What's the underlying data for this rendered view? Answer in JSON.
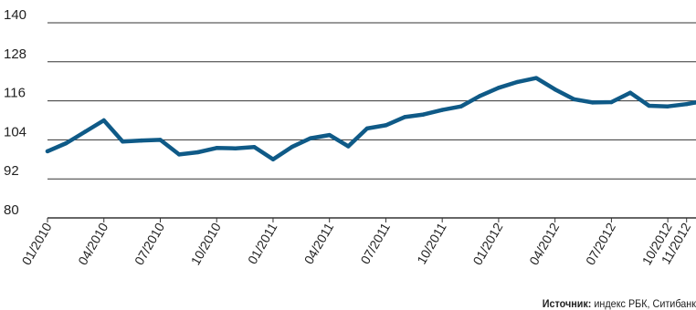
{
  "colors": {
    "line": "#0f5a87",
    "grid": "#333333",
    "text": "#222222"
  },
  "source": {
    "label": "Источник:",
    "text": " индекс РБК, Ситибанк"
  },
  "chart_data": {
    "type": "line",
    "title": "",
    "xlabel": "",
    "ylabel": "",
    "ylim": [
      80,
      140
    ],
    "yticks": [
      80,
      92,
      104,
      116,
      128,
      140
    ],
    "grid": true,
    "x_tick_labels": [
      "01/2010",
      "04/2010",
      "07/2010",
      "10/2010",
      "01/2011",
      "04/2011",
      "07/2011",
      "10/2011",
      "01/2012",
      "04/2012",
      "07/2012",
      "10/2012",
      "11/2012"
    ],
    "x_tick_months": [
      0,
      3,
      6,
      9,
      12,
      15,
      18,
      21,
      24,
      27,
      30,
      33,
      34
    ],
    "series": [
      {
        "months": [
          0,
          1,
          2,
          3,
          4,
          5,
          6,
          7,
          8,
          9,
          10,
          11,
          12,
          13,
          14,
          15,
          16,
          17,
          18,
          19,
          20,
          21,
          22,
          23,
          24,
          25,
          26,
          27,
          28,
          29,
          30,
          31,
          32,
          33,
          34,
          34.5
        ],
        "values": [
          100.5,
          103,
          106.5,
          110,
          103.5,
          103.8,
          104,
          99.5,
          100.2,
          101.5,
          101.4,
          101.8,
          98,
          101.8,
          104.5,
          105.5,
          102,
          107.5,
          108.5,
          111,
          111.8,
          113.2,
          114.3,
          117.5,
          120,
          121.8,
          123,
          119.5,
          116.5,
          115.5,
          115.6,
          118.5,
          114.5,
          114.3,
          115,
          115.5
        ]
      }
    ]
  }
}
